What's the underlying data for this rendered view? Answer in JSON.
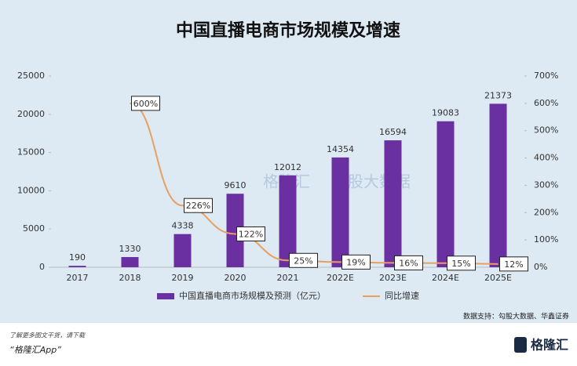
{
  "chart_data": {
    "type": "bar-line",
    "title": "中国直播电商市场规模及增速",
    "categories": [
      "2017",
      "2018",
      "2019",
      "2020",
      "2021",
      "2022E",
      "2023E",
      "2024E",
      "2025E"
    ],
    "series": [
      {
        "name": "中国直播电商市场规模及预测（亿元）",
        "color": "#6a2fa0",
        "type": "bar",
        "values": [
          190,
          1330,
          4338,
          9610,
          12012,
          14354,
          16594,
          19083,
          21373
        ]
      },
      {
        "name": "同比增速",
        "color": "#e8a060",
        "type": "line",
        "axis": "y2",
        "values": [
          null,
          600,
          226,
          122,
          25,
          19,
          16,
          15,
          12
        ],
        "value_labels": [
          null,
          "600%",
          "226%",
          "122%",
          "25%",
          "19%",
          "16%",
          "15%",
          "12%"
        ]
      }
    ],
    "ylim": [
      0,
      25000
    ],
    "yticks": [
      0,
      5000,
      10000,
      15000,
      20000,
      25000
    ],
    "y2lim": [
      0,
      700
    ],
    "y2ticks": [
      {
        "value": 0,
        "label": "0%"
      },
      {
        "value": 100,
        "label": "100%"
      },
      {
        "value": 200,
        "label": "200%"
      },
      {
        "value": 300,
        "label": "300%"
      },
      {
        "value": 400,
        "label": "400%"
      },
      {
        "value": 500,
        "label": "500%"
      },
      {
        "value": 600,
        "label": "600%"
      },
      {
        "value": 700,
        "label": "700%"
      }
    ],
    "legend": "bottom",
    "source": "数据支持：勾股大数据、华鑫证券",
    "watermarks": [
      "格隆汇",
      "勾股大数据"
    ]
  },
  "footer": {
    "note": "了解更多图文干货，请下载",
    "app": "“格隆汇App”",
    "logo": "格隆汇"
  }
}
